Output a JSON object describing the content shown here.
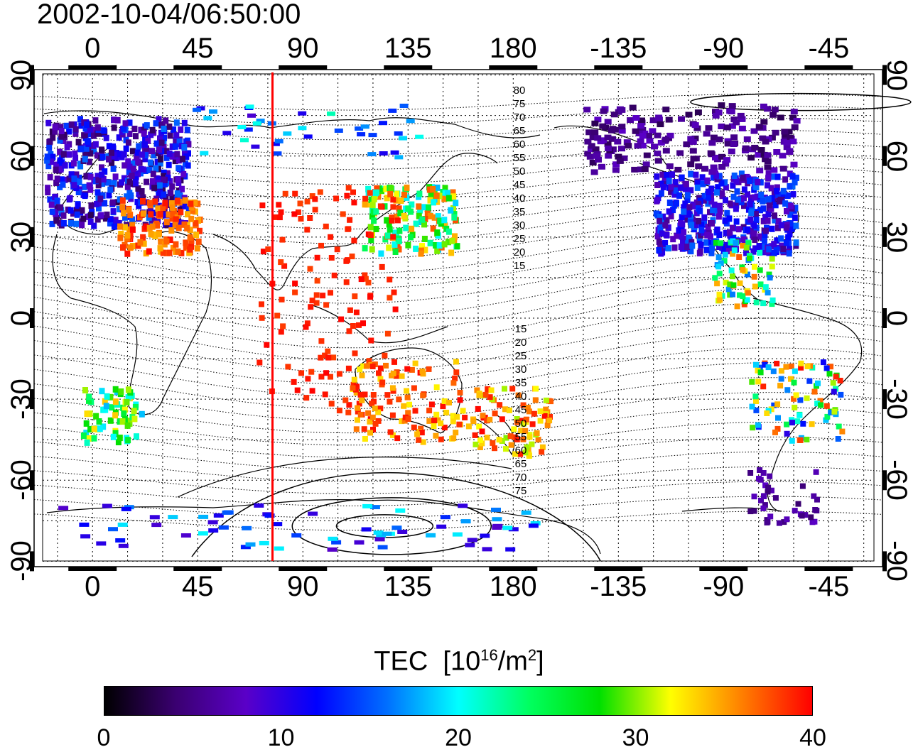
{
  "title": "2002-10-04/06:50:00",
  "map": {
    "top_ticks": [
      "0",
      "45",
      "90",
      "135",
      "180",
      "-135",
      "-90",
      "-45"
    ],
    "bottom_ticks": [
      "0",
      "45",
      "90",
      "135",
      "180",
      "-135",
      "-90",
      "-45"
    ],
    "left_ticks": [
      "90",
      "60",
      "30",
      "0",
      "-30",
      "-60",
      "-90"
    ],
    "right_ticks": [
      "90",
      "60",
      "30",
      "0",
      "-30",
      "-60",
      "-90"
    ],
    "lon_tick_values": [
      0,
      45,
      90,
      135,
      180,
      225,
      270,
      315
    ],
    "lat_tick_values": [
      90,
      60,
      30,
      0,
      -30,
      -60,
      -90
    ],
    "lon_range": [
      -25,
      338
    ],
    "lat_range": [
      -92,
      92
    ],
    "meridian_line": {
      "lon": 77,
      "color": "#ff0000"
    },
    "grid": "dotted",
    "contour_labels_north": [
      "80",
      "75",
      "70",
      "65",
      "60",
      "55",
      "50",
      "45",
      "40",
      "35",
      "30",
      "25",
      "20",
      "15"
    ],
    "contour_labels_south": [
      "15",
      "20",
      "25",
      "30",
      "35",
      "40",
      "45",
      "50",
      "55",
      "60",
      "65",
      "70",
      "75"
    ]
  },
  "colorbar": {
    "label_text": "TEC",
    "label_unit_base": "[10",
    "label_unit_exp": "16",
    "label_unit_mid": "/m",
    "label_unit_exp2": "2",
    "label_unit_end": "]",
    "min": 0,
    "max": 40,
    "ticks": [
      "0",
      "10",
      "20",
      "30",
      "40"
    ],
    "tick_values": [
      0,
      10,
      20,
      30,
      40
    ]
  },
  "colors": {
    "scale": [
      "#000000",
      "#3a0070",
      "#5a00c8",
      "#0000ff",
      "#0070ff",
      "#00ffff",
      "#00ff60",
      "#00e000",
      "#ffff00",
      "#ff8000",
      "#ff0000"
    ]
  }
}
